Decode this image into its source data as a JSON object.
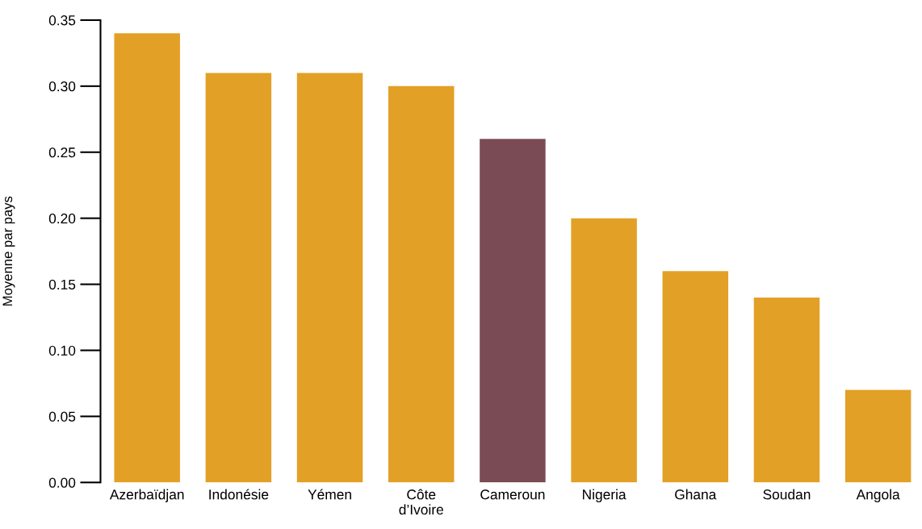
{
  "chart_data": {
    "type": "bar",
    "ylabel": "Moyenne par pays",
    "categories": [
      "Azerbaïdjan",
      "Indonésie",
      "Yémen",
      "Côte d’Ivoire",
      "Cameroun",
      "Nigeria",
      "Ghana",
      "Soudan",
      "Angola"
    ],
    "values": [
      0.34,
      0.31,
      0.31,
      0.3,
      0.26,
      0.2,
      0.16,
      0.14,
      0.07
    ],
    "colors": [
      "#e3a026",
      "#e3a026",
      "#e3a026",
      "#e3a026",
      "#7b4b55",
      "#e3a026",
      "#e3a026",
      "#e3a026",
      "#e3a026"
    ],
    "ylim": [
      0,
      0.35
    ],
    "yticks": [
      {
        "value": 0,
        "label": "0.00"
      },
      {
        "value": 0.05,
        "label": "0.05"
      },
      {
        "value": 0.1,
        "label": "0.10"
      },
      {
        "value": 0.15,
        "label": "0.15"
      },
      {
        "value": 0.2,
        "label": "0.20"
      },
      {
        "value": 0.25,
        "label": "0.25"
      },
      {
        "value": 0.3,
        "label": "0.30"
      },
      {
        "value": 0.35,
        "label": "0.35"
      }
    ],
    "grid": false,
    "legend": false
  }
}
